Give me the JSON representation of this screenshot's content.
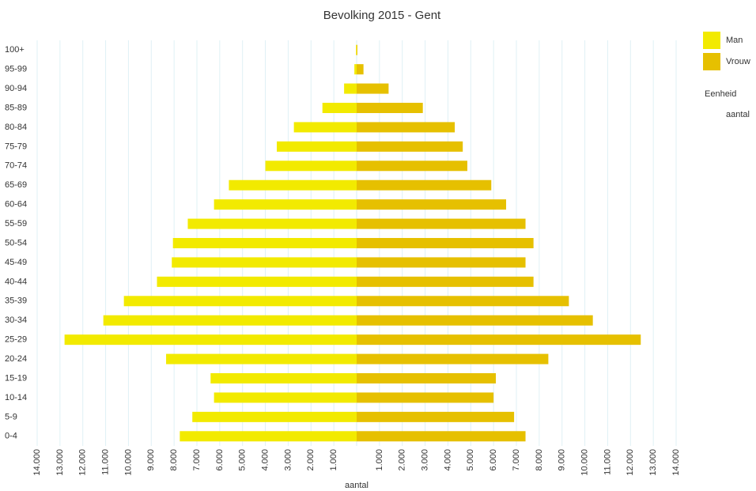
{
  "chart_data": {
    "type": "bar",
    "orientation": "horizontal",
    "title": "Bevolking 2015 - Gent",
    "xlabel": "aantal",
    "legend": "right",
    "unit_title": "Eenheid",
    "unit": "aantal",
    "grid": true,
    "categories": [
      "0-4",
      "5-9",
      "10-14",
      "15-19",
      "20-24",
      "25-29",
      "30-34",
      "35-39",
      "40-44",
      "45-49",
      "50-54",
      "55-59",
      "60-64",
      "65-69",
      "70-74",
      "75-79",
      "80-84",
      "85-89",
      "90-94",
      "95-99",
      "100+"
    ],
    "series": [
      {
        "name": "Man",
        "color": "#f2ea00",
        "values": [
          -7750,
          -7200,
          -6250,
          -6400,
          -8350,
          -12800,
          -11100,
          -10200,
          -8750,
          -8100,
          -8050,
          -7400,
          -6250,
          -5600,
          -4000,
          -3500,
          -2750,
          -1500,
          -550,
          -100,
          -30
        ]
      },
      {
        "name": "Vrouw",
        "color": "#e6c000",
        "values": [
          7400,
          6900,
          6000,
          6100,
          8400,
          12450,
          10350,
          9300,
          7750,
          7400,
          7750,
          7400,
          6550,
          5900,
          4850,
          4650,
          4300,
          2900,
          1400,
          300,
          30
        ]
      }
    ],
    "xlim": [
      -14000,
      14000
    ],
    "xticks": [
      {
        "value": -14000,
        "label": "14.000"
      },
      {
        "value": -13000,
        "label": "13.000"
      },
      {
        "value": -12000,
        "label": "12.000"
      },
      {
        "value": -11000,
        "label": "11.000"
      },
      {
        "value": -10000,
        "label": "10.000"
      },
      {
        "value": -9000,
        "label": "9.000"
      },
      {
        "value": -8000,
        "label": "8.000"
      },
      {
        "value": -7000,
        "label": "7.000"
      },
      {
        "value": -6000,
        "label": "6.000"
      },
      {
        "value": -5000,
        "label": "5.000"
      },
      {
        "value": -4000,
        "label": "4.000"
      },
      {
        "value": -3000,
        "label": "3.000"
      },
      {
        "value": -2000,
        "label": "2.000"
      },
      {
        "value": -1000,
        "label": "1.000"
      },
      {
        "value": 1000,
        "label": "1.000"
      },
      {
        "value": 2000,
        "label": "2.000"
      },
      {
        "value": 3000,
        "label": "3.000"
      },
      {
        "value": 4000,
        "label": "4.000"
      },
      {
        "value": 5000,
        "label": "5.000"
      },
      {
        "value": 6000,
        "label": "6.000"
      },
      {
        "value": 7000,
        "label": "7.000"
      },
      {
        "value": 8000,
        "label": "8.000"
      },
      {
        "value": 9000,
        "label": "9.000"
      },
      {
        "value": 10000,
        "label": "10.000"
      },
      {
        "value": 11000,
        "label": "11.000"
      },
      {
        "value": 12000,
        "label": "12.000"
      },
      {
        "value": 13000,
        "label": "13.000"
      },
      {
        "value": 14000,
        "label": "14.000"
      }
    ]
  }
}
